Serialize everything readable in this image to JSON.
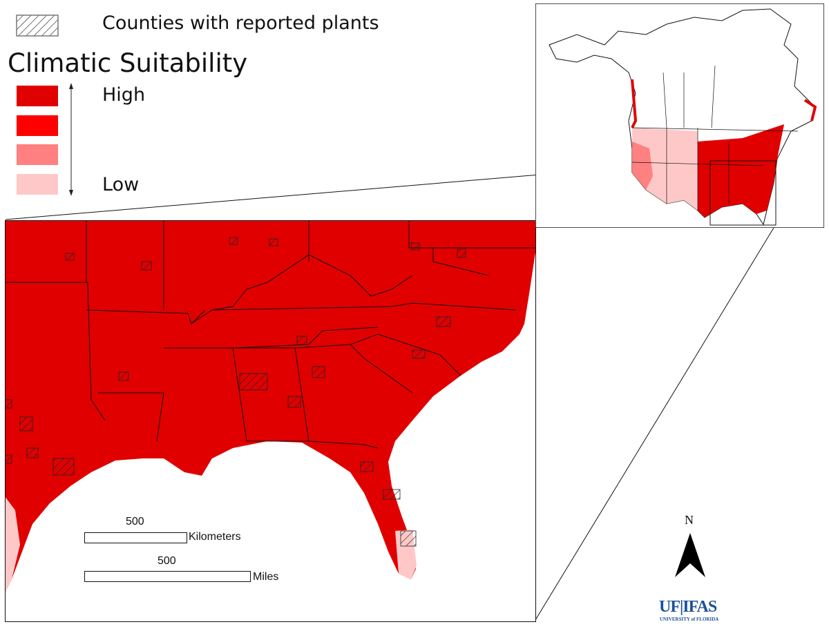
{
  "legend": {
    "hatch_label": "Counties with reported plants",
    "title": "Climatic Suitability",
    "high_label": "High",
    "low_label": "Low",
    "classes": [
      "#e00000",
      "#ff0000",
      "#ff8080",
      "#ffc8c8"
    ]
  },
  "scale_bar": {
    "km_value": "500",
    "km_unit": "Kilometers",
    "mi_value": "500",
    "mi_unit": "Miles"
  },
  "north_arrow": {
    "label": "N"
  },
  "logo": {
    "main": "UF|IFAS",
    "sub": "UNIVERSITY of FLORIDA"
  },
  "colors": {
    "land": "#e00000",
    "ocean": "#ffffff",
    "low": "#ffc8c8",
    "logo": "#1b4f9c",
    "logo_bar": "#f08a24"
  }
}
